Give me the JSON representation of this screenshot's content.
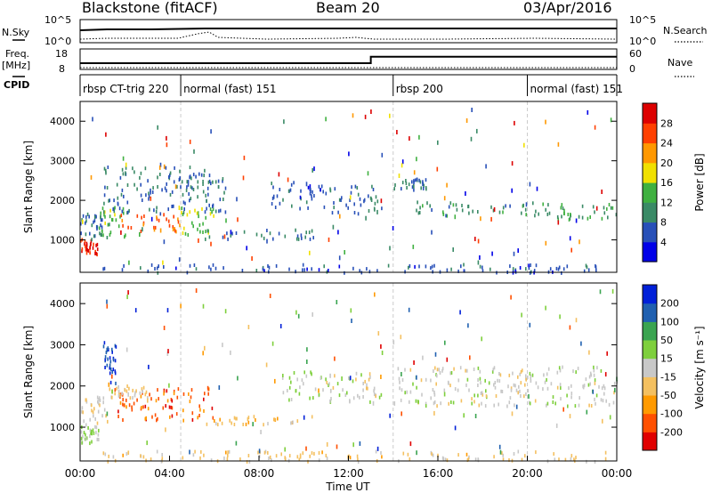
{
  "header": {
    "title_left": "Blackstone (fitACF)",
    "title_center": "Beam 20",
    "title_right": "03/Apr/2016"
  },
  "strip": {
    "nsky_label": "N.Sky",
    "nsky_ticks": [
      "10^5",
      "10^0"
    ],
    "nsearch_label": "N.Search",
    "nsearch_ticks": [
      "10^5",
      "10^0"
    ],
    "freq_label_1": "Freq.",
    "freq_label_2": "[MHz]",
    "freq_ticks": [
      "18",
      "8"
    ],
    "nave_label": "Nave",
    "nave_ticks": [
      "60",
      "0"
    ],
    "cpid_label": "CPID",
    "cpid_segments": [
      {
        "label": "rbsp CT-trig 220",
        "start_hour": 0.0
      },
      {
        "label": "normal (fast) 151",
        "start_hour": 4.5
      },
      {
        "label": "rbsp 200",
        "start_hour": 14.0
      },
      {
        "label": "normal (fast) 151",
        "start_hour": 20.0
      }
    ],
    "freq_mhz": [
      {
        "hour": 0,
        "value": 10.5
      },
      {
        "hour": 13.0,
        "value": 10.5
      },
      {
        "hour": 13.0,
        "value": 15.0
      },
      {
        "hour": 24,
        "value": 15.0
      }
    ]
  },
  "x_axis": {
    "label": "Time UT",
    "ticks": [
      "00:00",
      "04:00",
      "08:00",
      "12:00",
      "16:00",
      "20:00",
      "00:00"
    ],
    "range_hours": [
      0,
      24
    ]
  },
  "chart_data": [
    {
      "type": "heatmap",
      "panel": "power",
      "ylabel": "Slant Range [km]",
      "yticks": [
        1000,
        2000,
        3000,
        4000
      ],
      "ylim": [
        180,
        4500
      ],
      "xlim": [
        0,
        24
      ],
      "colorbar": {
        "label": "Power [dB]",
        "ticks": [
          "28",
          "24",
          "20",
          "16",
          "12",
          "8",
          "4"
        ],
        "range": [
          0,
          32
        ]
      },
      "colors": [
        "#0000e8",
        "#2850b8",
        "#3a8a66",
        "#3fb040",
        "#f0e000",
        "#ff9800",
        "#ff4000",
        "#dd0000"
      ],
      "scatter_bands": [
        {
          "x0": 0.0,
          "x1": 0.8,
          "y0": 650,
          "y1": 1050,
          "value": 28
        },
        {
          "x0": 0.0,
          "x1": 1.0,
          "y0": 1050,
          "y1": 1700,
          "value": 8
        },
        {
          "x0": 0.8,
          "x1": 2.0,
          "y0": 1100,
          "y1": 1900,
          "value": 14
        },
        {
          "x0": 1.5,
          "x1": 4.5,
          "y0": 1250,
          "y1": 1700,
          "value": 24
        },
        {
          "x0": 4.5,
          "x1": 6.0,
          "y0": 1150,
          "y1": 1850,
          "value": 16
        },
        {
          "x0": 1.0,
          "x1": 6.5,
          "y0": 1700,
          "y1": 2900,
          "value": 8
        },
        {
          "x0": 5.5,
          "x1": 10.5,
          "y0": 1050,
          "y1": 1300,
          "value": 8
        },
        {
          "x0": 8.5,
          "x1": 11.0,
          "y0": 1800,
          "y1": 2500,
          "value": 6
        },
        {
          "x0": 11.0,
          "x1": 13.5,
          "y0": 1700,
          "y1": 2400,
          "value": 8
        },
        {
          "x0": 14.0,
          "x1": 15.5,
          "y0": 2300,
          "y1": 2600,
          "value": 8
        },
        {
          "x0": 15.0,
          "x1": 21.0,
          "y0": 1650,
          "y1": 2000,
          "value": 10
        },
        {
          "x0": 21.0,
          "x1": 24.0,
          "y0": 1550,
          "y1": 1950,
          "value": 12
        },
        {
          "x0": 1.0,
          "x1": 23.5,
          "y0": 200,
          "y1": 420,
          "value": 6
        }
      ]
    },
    {
      "type": "heatmap",
      "panel": "velocity",
      "ylabel": "Slant Range [km]",
      "yticks": [
        1000,
        2000,
        3000,
        4000
      ],
      "ylim": [
        180,
        4500
      ],
      "xlim": [
        0,
        24
      ],
      "colorbar": {
        "label": "Velocity [m s⁻¹]",
        "ticks": [
          "200",
          "100",
          "50",
          "15",
          "-15",
          "-50",
          "-100",
          "-200"
        ],
        "range": [
          -250,
          250
        ]
      },
      "colors": [
        "#e00000",
        "#ff5000",
        "#ff9a00",
        "#f4c060",
        "#c8c8c8",
        "#7ecf3c",
        "#3aa450",
        "#2060b0",
        "#0020d8"
      ],
      "scatter_bands": [
        {
          "x0": 0.0,
          "x1": 0.8,
          "y0": 650,
          "y1": 1100,
          "value": 40
        },
        {
          "x0": 0.0,
          "x1": 1.2,
          "y0": 1100,
          "y1": 1800,
          "value": -30
        },
        {
          "x0": 1.0,
          "x1": 1.6,
          "y0": 2100,
          "y1": 3100,
          "value": 200
        },
        {
          "x0": 1.5,
          "x1": 6.0,
          "y0": 1200,
          "y1": 2000,
          "value": -160
        },
        {
          "x0": 1.2,
          "x1": 3.0,
          "y0": 1750,
          "y1": 2050,
          "value": -40
        },
        {
          "x0": 5.5,
          "x1": 10.5,
          "y0": 1100,
          "y1": 1300,
          "value": -60
        },
        {
          "x0": 9.0,
          "x1": 11.0,
          "y0": 1700,
          "y1": 2400,
          "value": 30
        },
        {
          "x0": 11.0,
          "x1": 13.5,
          "y0": 1600,
          "y1": 2400,
          "value": 0
        },
        {
          "x0": 14.0,
          "x1": 24.0,
          "y0": 1550,
          "y1": 2500,
          "value": 0
        },
        {
          "x0": 1.0,
          "x1": 23.5,
          "y0": 200,
          "y1": 450,
          "value": -40
        }
      ]
    }
  ]
}
